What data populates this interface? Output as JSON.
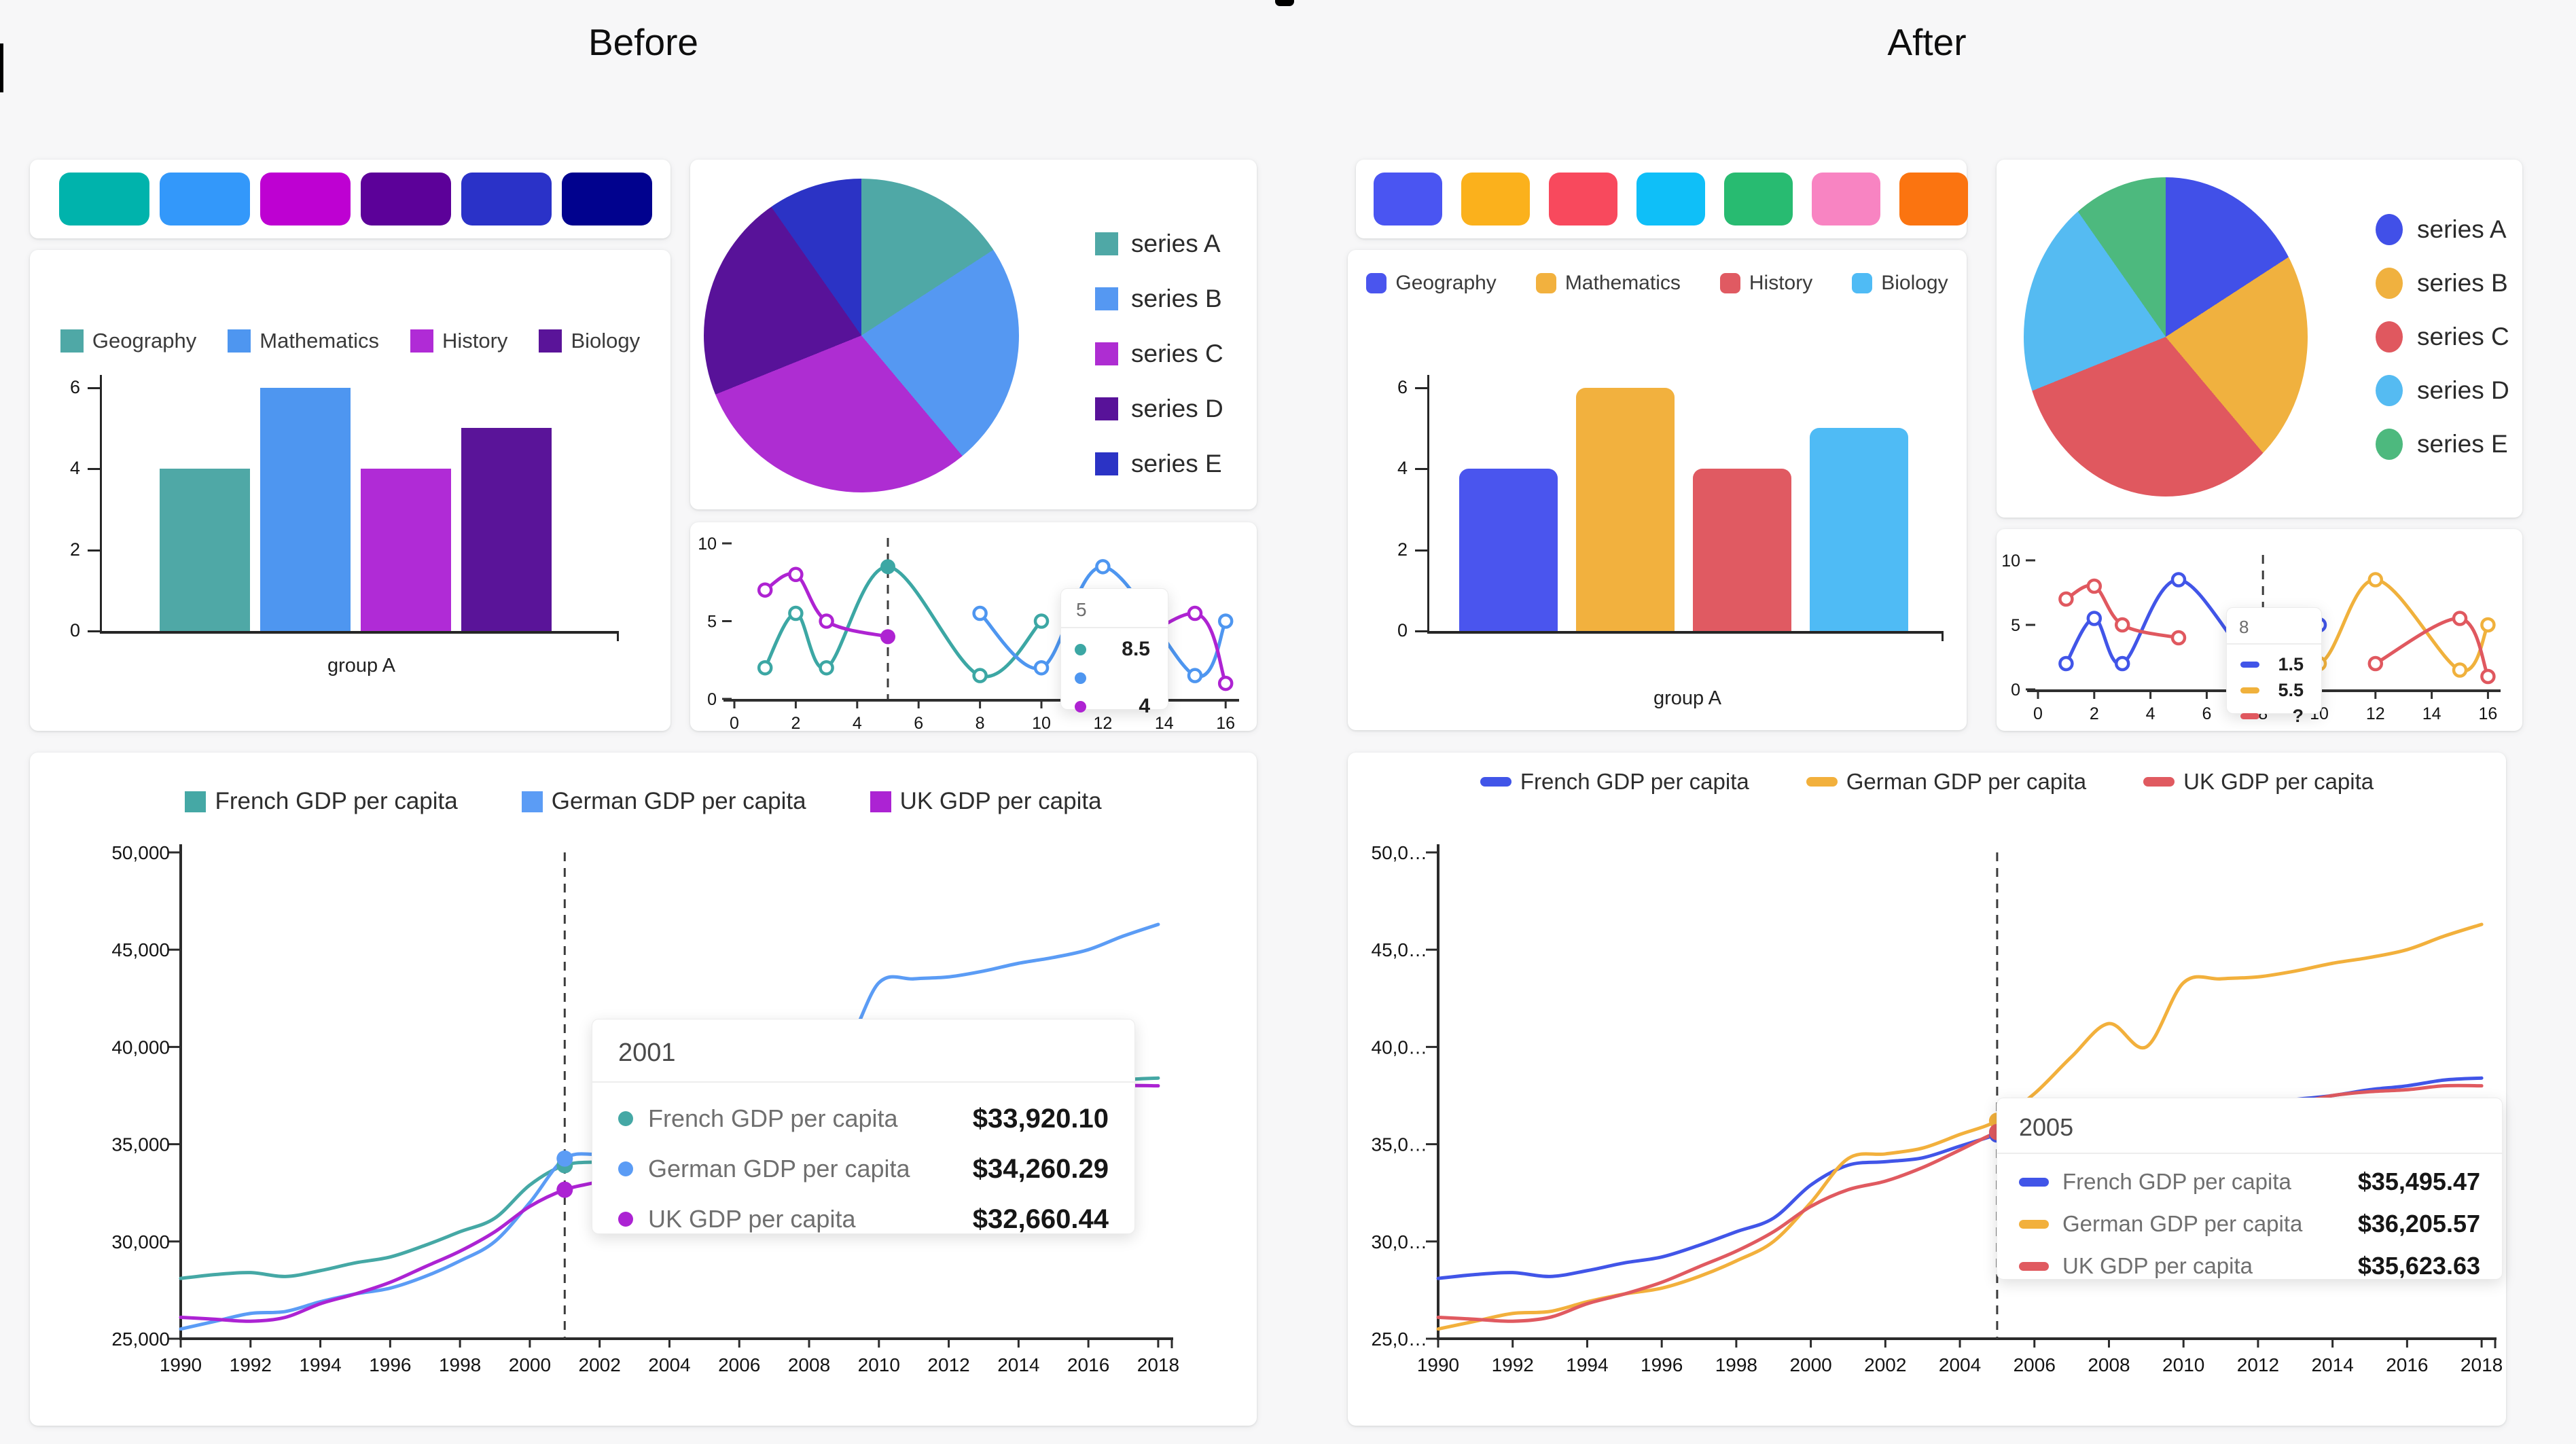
{
  "page": {
    "background": "#f7f7f8",
    "notch_color": "#000000"
  },
  "chart_data": {
    "bar": {
      "type": "bar",
      "categories": [
        "group A"
      ],
      "series_names": [
        "Geography",
        "Mathematics",
        "History",
        "Biology"
      ],
      "values": [
        4,
        6,
        4,
        5
      ],
      "yticks": [
        "0",
        "2",
        "4",
        "6"
      ],
      "ylim": [
        0,
        6
      ],
      "xlabel": "group A"
    },
    "pie": {
      "type": "pie",
      "labels": [
        "series A",
        "series B",
        "series C",
        "series D",
        "series E"
      ],
      "percentages": [
        15.8,
        23.1,
        30.0,
        21.4,
        9.7
      ],
      "end_degrees": [
        57,
        140,
        248,
        325,
        360
      ],
      "legend_position": "right"
    },
    "mini_line": {
      "type": "line",
      "xlim": [
        0,
        16
      ],
      "ylim": [
        0,
        10
      ],
      "xticks": [
        "0",
        "2",
        "4",
        "6",
        "8",
        "10",
        "12",
        "14",
        "16"
      ],
      "yticks": [
        "0",
        "5",
        "10"
      ],
      "series": [
        {
          "points": [
            [
              1,
              2
            ],
            [
              2,
              5.5
            ],
            [
              3,
              2
            ],
            [
              5,
              8.5
            ],
            [
              8,
              1.5
            ],
            [
              10,
              5
            ]
          ]
        },
        {
          "points": [
            [
              8,
              5.5
            ],
            [
              10,
              2
            ],
            [
              12,
              8.5
            ],
            [
              15,
              1.5
            ],
            [
              16,
              5
            ]
          ]
        },
        {
          "points": [
            [
              1,
              7
            ],
            [
              2,
              8
            ],
            [
              3,
              5
            ],
            [
              5,
              4
            ],
            null,
            [
              12,
              2
            ],
            [
              15,
              5.5
            ],
            [
              16,
              1
            ]
          ]
        }
      ]
    },
    "gdp_line": {
      "type": "line",
      "x_start": 1990,
      "x_end": 2018,
      "ylim": [
        25000,
        50000
      ],
      "xticks": [
        "1990",
        "1992",
        "1994",
        "1996",
        "1998",
        "2000",
        "2002",
        "2004",
        "2006",
        "2008",
        "2010",
        "2012",
        "2014",
        "2016",
        "2018"
      ],
      "series": [
        {
          "name": "French GDP per capita",
          "values": [
            28100,
            28300,
            28400,
            28200,
            28500,
            28900,
            29200,
            29800,
            30500,
            31200,
            32900,
            33920,
            34100,
            34300,
            34900,
            35495,
            36100,
            36900,
            37000,
            36200,
            36700,
            37000,
            37100,
            37300,
            37500,
            37800,
            38000,
            38300,
            38400
          ]
        },
        {
          "name": "German GDP per capita",
          "values": [
            25500,
            25900,
            26300,
            26400,
            26900,
            27300,
            27600,
            28200,
            29000,
            30000,
            32000,
            34260,
            34500,
            34800,
            35500,
            36205,
            37600,
            39500,
            41200,
            40000,
            43300,
            43500,
            43600,
            43900,
            44300,
            44600,
            45000,
            45700,
            46300
          ]
        },
        {
          "name": "UK GDP per capita",
          "values": [
            26100,
            26000,
            25900,
            26100,
            26800,
            27300,
            27900,
            28700,
            29500,
            30500,
            31800,
            32660,
            33100,
            33800,
            34700,
            35623,
            36300,
            37000,
            37000,
            36000,
            36300,
            36500,
            36800,
            37100,
            37500,
            37700,
            37800,
            38000,
            38000
          ]
        }
      ]
    }
  },
  "panels": {
    "before": {
      "title": "Before",
      "palette": [
        "#00B3AC",
        "#3398FA",
        "#BE01D2",
        "#5C0199",
        "#2A32C8",
        "#01028E"
      ],
      "bar_legend": [
        {
          "label": "Geography",
          "color": "#4FA8A6"
        },
        {
          "label": "Mathematics",
          "color": "#4E96F0"
        },
        {
          "label": "History",
          "color": "#B02BD6"
        },
        {
          "label": "Biology",
          "color": "#5A1499"
        }
      ],
      "pie_legend": [
        {
          "label": "series A",
          "color": "#4FA8A6"
        },
        {
          "label": "series B",
          "color": "#5598F2"
        },
        {
          "label": "series C",
          "color": "#AE2DD2"
        },
        {
          "label": "series D",
          "color": "#581299"
        },
        {
          "label": "series E",
          "color": "#2B33C5"
        }
      ],
      "mini": {
        "colors": [
          "#3CA7A4",
          "#4E96F0",
          "#AE23D2"
        ],
        "cursor_x": 5,
        "tooltip": {
          "header": "5",
          "rows": [
            {
              "color": "#3CA7A4",
              "value": "8.5"
            },
            {
              "color": "#4E96F0",
              "value": ""
            },
            {
              "color": "#AE23D2",
              "value": "4"
            }
          ]
        }
      },
      "gdp": {
        "legend": [
          {
            "label": "French GDP per capita",
            "color": "#45A8A5"
          },
          {
            "label": "German GDP per capita",
            "color": "#5B9CF5"
          },
          {
            "label": "UK GDP per capita",
            "color": "#AC23D3"
          }
        ],
        "yticks": [
          "25,000",
          "30,000",
          "35,000",
          "40,000",
          "45,000",
          "50,000"
        ],
        "cursor_year": 2001,
        "tooltip": {
          "title": "2001",
          "rows": [
            {
              "label": "French GDP per capita",
              "value": "$33,920.10",
              "color": "#45A8A5"
            },
            {
              "label": "German GDP per capita",
              "value": "$34,260.29",
              "color": "#5B9CF5"
            },
            {
              "label": "UK GDP per capita",
              "value": "$32,660.44",
              "color": "#AC23D3"
            }
          ]
        }
      }
    },
    "after": {
      "title": "After",
      "palette": [
        "#4A55F2",
        "#FBB11C",
        "#F8495D",
        "#0FBFF8",
        "#28BB71",
        "#F884C2",
        "#FB7410"
      ],
      "bar_legend": [
        {
          "label": "Geography",
          "color": "#4A55EE"
        },
        {
          "label": "Mathematics",
          "color": "#F2B13E"
        },
        {
          "label": "History",
          "color": "#E05A62"
        },
        {
          "label": "Biology",
          "color": "#4FBBF5"
        }
      ],
      "pie_legend": [
        {
          "label": "series A",
          "color": "#4150E8"
        },
        {
          "label": "series B",
          "color": "#F0B13F"
        },
        {
          "label": "series C",
          "color": "#E0585F"
        },
        {
          "label": "series D",
          "color": "#55BBF2"
        },
        {
          "label": "series E",
          "color": "#4DB97E"
        }
      ],
      "mini": {
        "colors": [
          "#4155E8",
          "#F0B13C",
          "#E0585F"
        ],
        "cursor_x": 8,
        "tooltip": {
          "header": "8",
          "rows": [
            {
              "color": "#4155E8",
              "value": "1.5"
            },
            {
              "color": "#F0B13C",
              "value": "5.5"
            },
            {
              "color": "#E0585F",
              "value": "?"
            }
          ]
        }
      },
      "gdp": {
        "legend": [
          {
            "label": "French GDP per capita",
            "color": "#4155E8"
          },
          {
            "label": "German GDP per capita",
            "color": "#F2B03C"
          },
          {
            "label": "UK GDP per capita",
            "color": "#E05A60"
          }
        ],
        "yticks": [
          "25,0…",
          "30,0…",
          "35,0…",
          "40,0…",
          "45,0…",
          "50,0…"
        ],
        "cursor_year": 2005,
        "tooltip": {
          "title": "2005",
          "rows": [
            {
              "label": "French GDP per capita",
              "value": "$35,495.47",
              "color": "#4155E8"
            },
            {
              "label": "German GDP per capita",
              "value": "$36,205.57",
              "color": "#F2B03C"
            },
            {
              "label": "UK GDP per capita",
              "value": "$35,623.63",
              "color": "#E05A60"
            }
          ]
        }
      }
    }
  }
}
